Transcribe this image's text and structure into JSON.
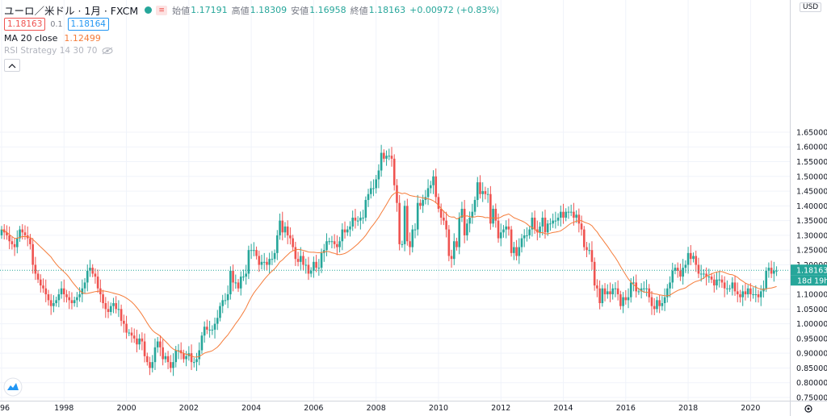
{
  "header": {
    "symbol": "ユーロ／米ドル · 1月 · FXCM",
    "open_label": "始値",
    "open_value": "1.17191",
    "high_label": "高値",
    "high_value": "1.18309",
    "low_label": "安値",
    "low_value": "1.16958",
    "close_label": "終値",
    "close_value": "1.18163",
    "change": "+0.00972 (+0.83%)",
    "hm_badge": "≡"
  },
  "quote": {
    "bid": "1.18163",
    "spread": "0.1",
    "ask": "1.18164"
  },
  "indicators": {
    "ma_label": "MA 20 close",
    "ma_value": "1.12499",
    "rsi_label": "RSI Strategy 14 30 70"
  },
  "price_axis": {
    "currency": "USD",
    "last_price": "1.18163",
    "countdown": "18d 19h",
    "ticks": [
      "1.65000",
      "1.60000",
      "1.55000",
      "1.50000",
      "1.45000",
      "1.40000",
      "1.35000",
      "1.30000",
      "1.25000",
      "1.20000",
      "1.15000",
      "1.10000",
      "1.05000",
      "1.00000",
      "0.95000",
      "0.90000",
      "0.85000",
      "0.80000",
      "0.75000"
    ]
  },
  "chart_data": {
    "type": "candlestick",
    "title": "ユーロ／米ドル · 1月 · FXCM",
    "x_ticks": [
      "96",
      "1998",
      "2000",
      "2002",
      "2004",
      "2006",
      "2008",
      "2010",
      "2012",
      "2014",
      "2016",
      "2018",
      "2020"
    ],
    "ylim": [
      0.75,
      1.66
    ],
    "grid": true,
    "colors": {
      "up": "#26a69a",
      "down": "#ef5350",
      "ma": "#f57c3a",
      "grid": "#f0f3fa",
      "last_line": "#26a69a"
    },
    "series": [
      {
        "name": "EURUSD",
        "kind": "monthly close (approx.)",
        "start": "1996-01",
        "closes": [
          1.32,
          1.31,
          1.3,
          1.28,
          1.27,
          1.26,
          1.29,
          1.32,
          1.31,
          1.3,
          1.29,
          1.27,
          1.2,
          1.17,
          1.15,
          1.13,
          1.12,
          1.1,
          1.08,
          1.06,
          1.07,
          1.08,
          1.1,
          1.12,
          1.1,
          1.09,
          1.08,
          1.07,
          1.08,
          1.09,
          1.1,
          1.12,
          1.14,
          1.18,
          1.19,
          1.17,
          1.16,
          1.12,
          1.1,
          1.07,
          1.05,
          1.04,
          1.06,
          1.07,
          1.05,
          1.05,
          1.01,
          1.0,
          0.97,
          0.97,
          0.96,
          0.95,
          0.93,
          0.95,
          0.94,
          0.89,
          0.87,
          0.85,
          0.87,
          0.92,
          0.94,
          0.92,
          0.88,
          0.89,
          0.87,
          0.85,
          0.87,
          0.91,
          0.91,
          0.9,
          0.88,
          0.89,
          0.9,
          0.87,
          0.87,
          0.88,
          0.91,
          0.96,
          0.99,
          0.98,
          0.98,
          0.98,
          1.0,
          1.02,
          1.06,
          1.08,
          1.08,
          1.1,
          1.18,
          1.14,
          1.14,
          1.12,
          1.16,
          1.16,
          1.17,
          1.25,
          1.25,
          1.25,
          1.23,
          1.2,
          1.21,
          1.21,
          1.2,
          1.22,
          1.22,
          1.24,
          1.3,
          1.35,
          1.31,
          1.33,
          1.3,
          1.29,
          1.26,
          1.22,
          1.21,
          1.23,
          1.2,
          1.2,
          1.17,
          1.18,
          1.21,
          1.19,
          1.19,
          1.24,
          1.25,
          1.28,
          1.28,
          1.28,
          1.27,
          1.26,
          1.28,
          1.32,
          1.31,
          1.32,
          1.33,
          1.36,
          1.35,
          1.35,
          1.36,
          1.36,
          1.42,
          1.44,
          1.46,
          1.46,
          1.49,
          1.52,
          1.58,
          1.56,
          1.57,
          1.57,
          1.56,
          1.47,
          1.41,
          1.27,
          1.27,
          1.4,
          1.28,
          1.26,
          1.32,
          1.32,
          1.41,
          1.4,
          1.42,
          1.43,
          1.46,
          1.47,
          1.5,
          1.43,
          1.39,
          1.36,
          1.35,
          1.32,
          1.23,
          1.22,
          1.28,
          1.26,
          1.36,
          1.39,
          1.3,
          1.34,
          1.36,
          1.38,
          1.42,
          1.48,
          1.44,
          1.45,
          1.44,
          1.44,
          1.34,
          1.39,
          1.35,
          1.29,
          1.31,
          1.32,
          1.33,
          1.32,
          1.24,
          1.26,
          1.23,
          1.26,
          1.29,
          1.3,
          1.3,
          1.32,
          1.36,
          1.32,
          1.31,
          1.33,
          1.36,
          1.31,
          1.34,
          1.34,
          1.35,
          1.35,
          1.36,
          1.38,
          1.36,
          1.38,
          1.38,
          1.38,
          1.36,
          1.37,
          1.34,
          1.32,
          1.26,
          1.25,
          1.25,
          1.21,
          1.13,
          1.12,
          1.07,
          1.12,
          1.1,
          1.11,
          1.1,
          1.12,
          1.12,
          1.1,
          1.06,
          1.09,
          1.08,
          1.09,
          1.14,
          1.14,
          1.11,
          1.11,
          1.12,
          1.12,
          1.12,
          1.09,
          1.06,
          1.05,
          1.08,
          1.06,
          1.07,
          1.09,
          1.12,
          1.14,
          1.18,
          1.19,
          1.18,
          1.16,
          1.19,
          1.2,
          1.24,
          1.22,
          1.23,
          1.2,
          1.17,
          1.17,
          1.17,
          1.16,
          1.16,
          1.15,
          1.13,
          1.15,
          1.15,
          1.14,
          1.12,
          1.12,
          1.12,
          1.14,
          1.11,
          1.1,
          1.09,
          1.11,
          1.1,
          1.12,
          1.1,
          1.1,
          1.1,
          1.09,
          1.11,
          1.12,
          1.18,
          1.19,
          1.17,
          1.18,
          1.18
        ],
        "last_close": 1.18163
      },
      {
        "name": "MA 20 close",
        "kind": "moving average",
        "period": 20
      }
    ]
  }
}
